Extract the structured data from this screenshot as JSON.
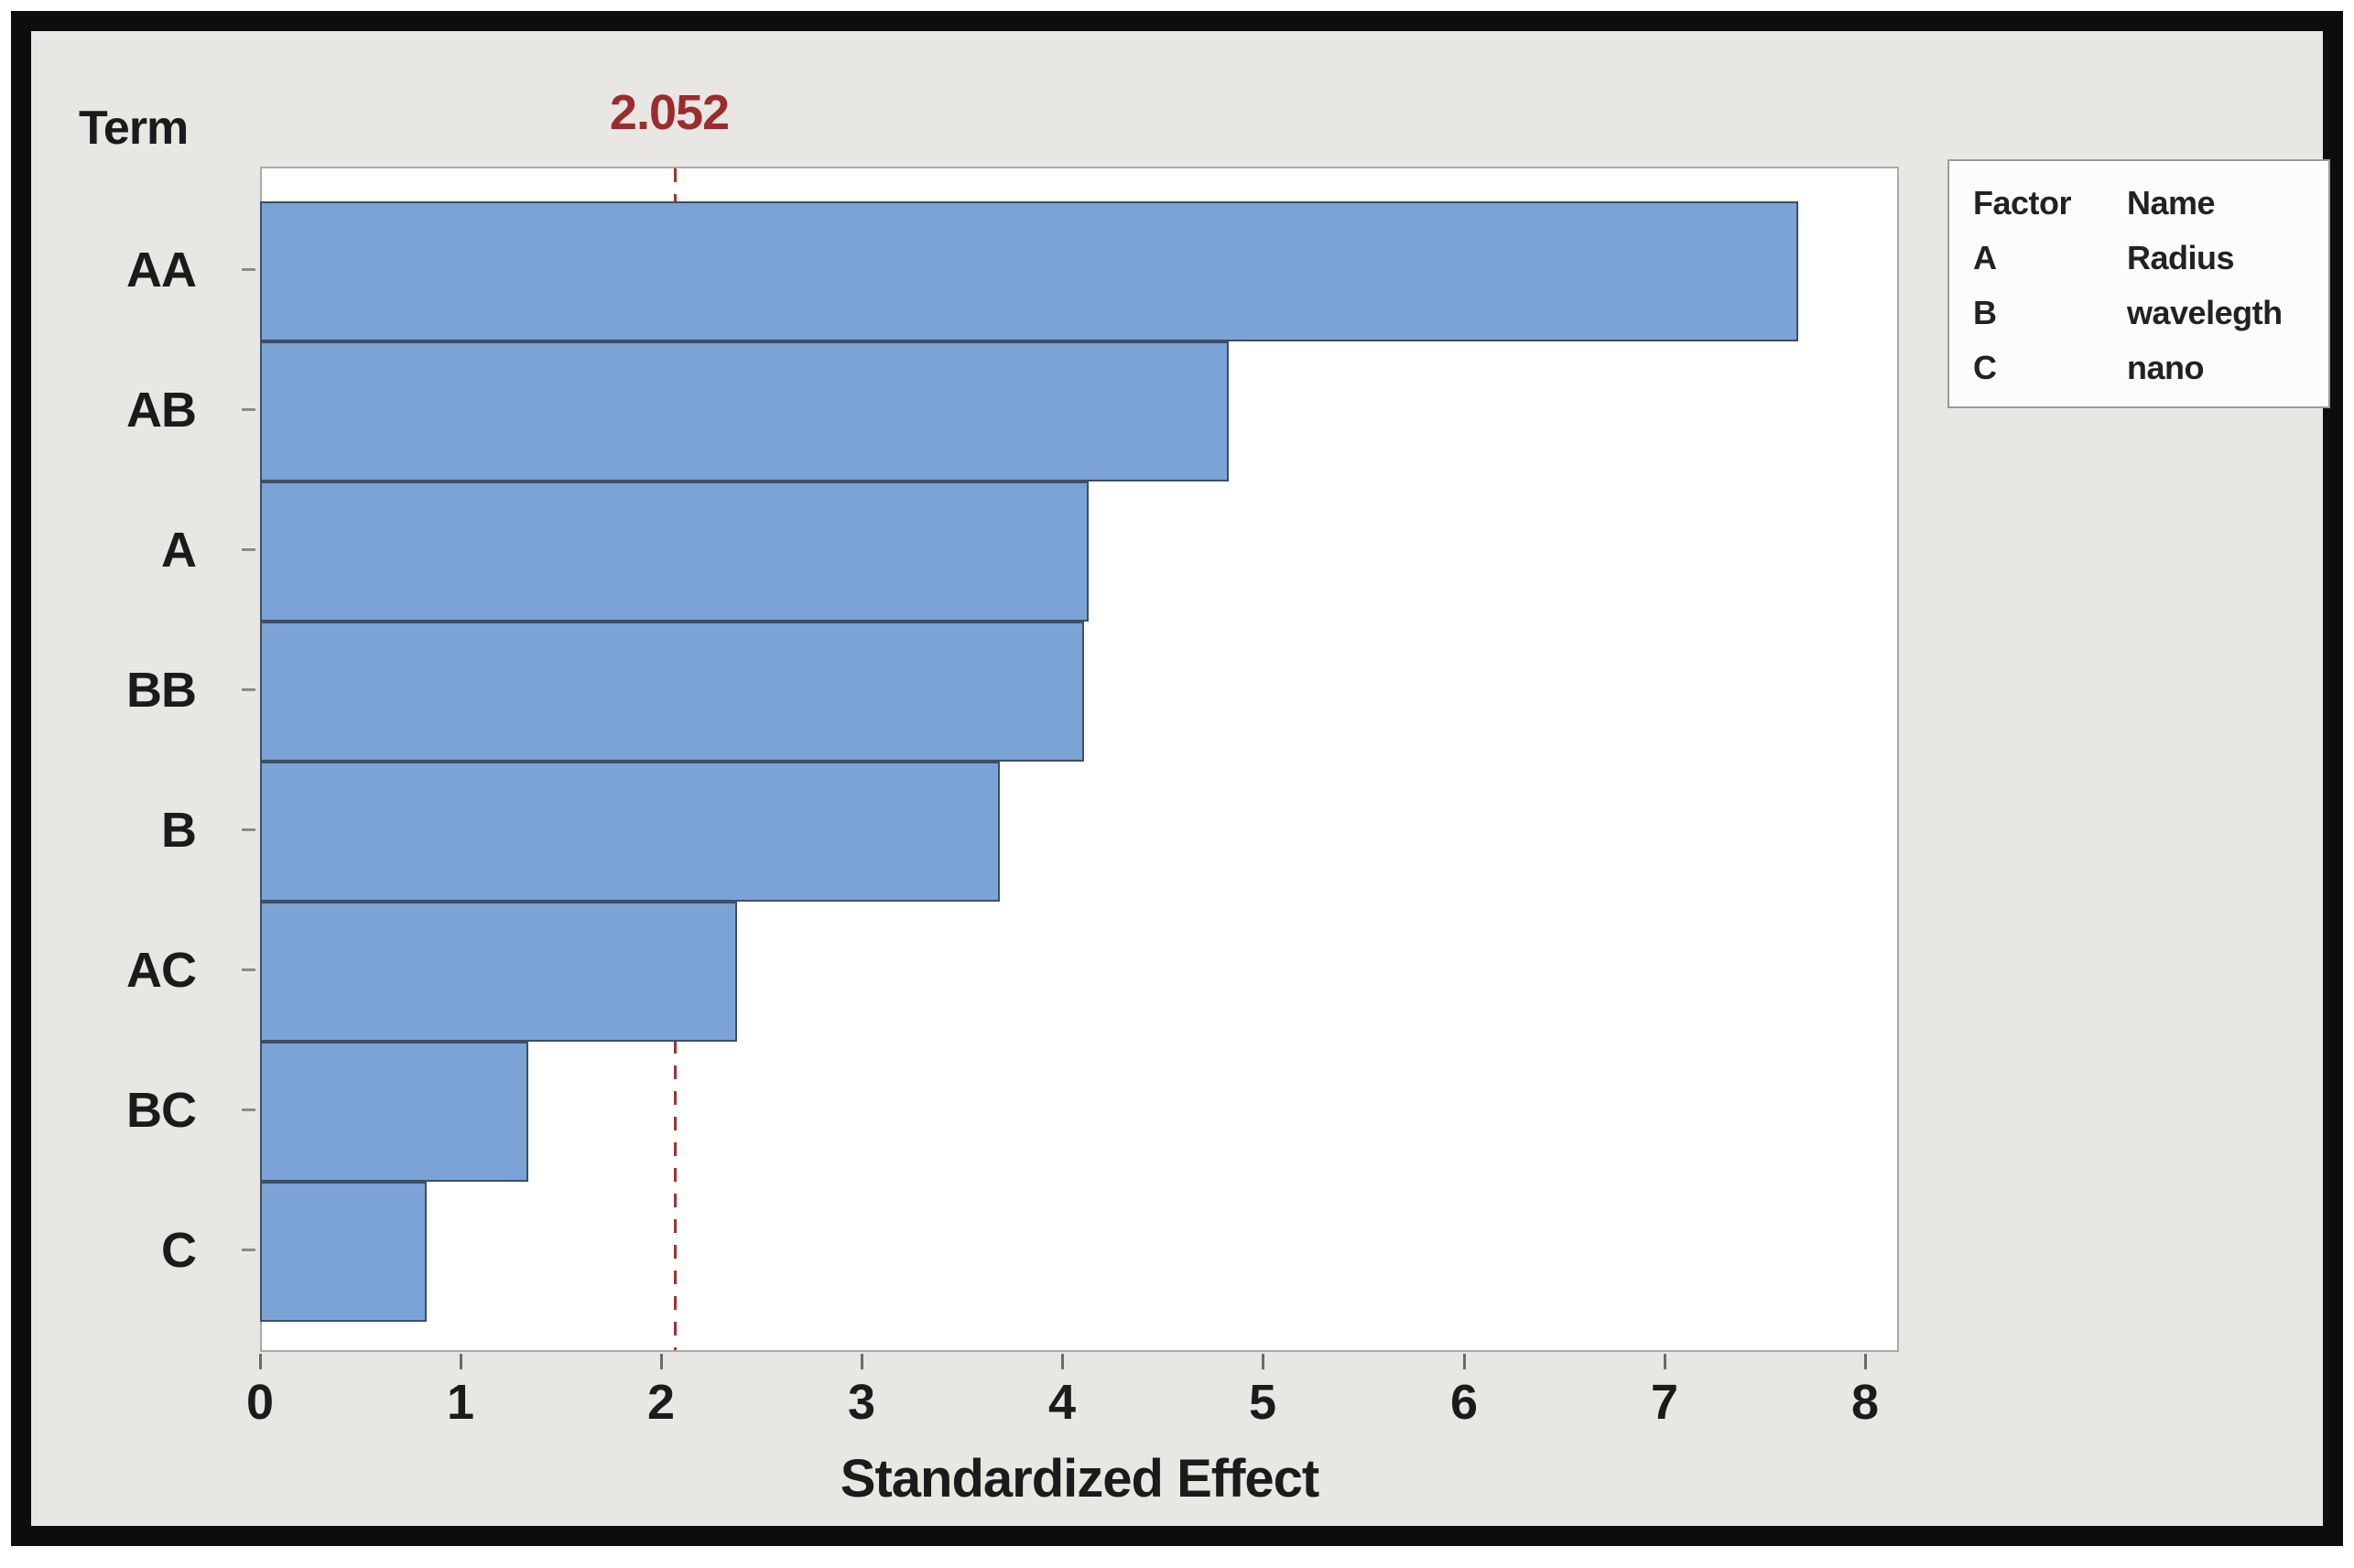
{
  "title": "Term",
  "chart_data": {
    "type": "bar",
    "orientation": "horizontal",
    "title": "Term",
    "xlabel": "Standardized Effect",
    "categories": [
      "AA",
      "AB",
      "A",
      "BB",
      "B",
      "AC",
      "BC",
      "C"
    ],
    "values": [
      7.66,
      4.82,
      4.12,
      4.1,
      3.68,
      2.37,
      1.33,
      0.82
    ],
    "x_ticks": [
      0,
      1,
      2,
      3,
      4,
      5,
      6,
      7,
      8
    ],
    "xlim": [
      0,
      8.17
    ],
    "grid": false,
    "reference_line": {
      "value": 2.052,
      "label": "2.052"
    },
    "legend": {
      "position": "top-right",
      "headers": [
        "Factor",
        "Name"
      ],
      "rows": [
        [
          "A",
          "Radius"
        ],
        [
          "B",
          "wavelegth"
        ],
        [
          "C",
          "nano"
        ]
      ]
    },
    "colors": {
      "bar_fill": "#7ba3d6",
      "bar_border": "#3f4e63",
      "reference_line": "#9c3434",
      "reference_label": "#9c2c2c",
      "background": "#e8e7e4",
      "plot_background": "#ffffff",
      "frame": "#0d0d0d",
      "text": "#1b1b1b"
    }
  }
}
